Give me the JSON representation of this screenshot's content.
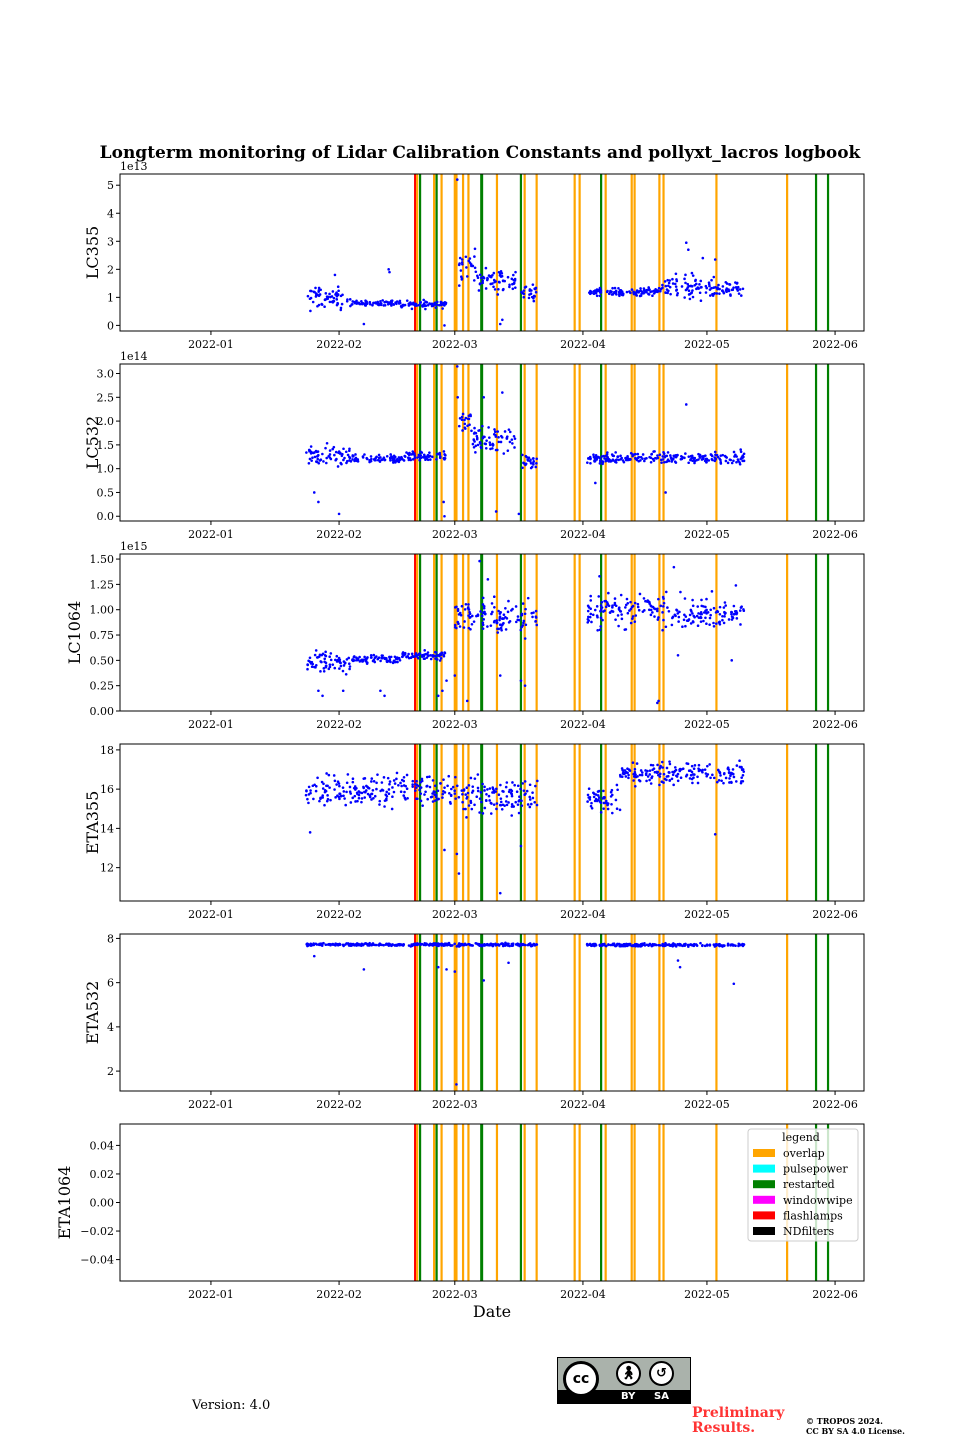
{
  "figure": {
    "title": "Longterm monitoring of Lidar Calibration Constants and pollyxt_lacros logbook",
    "xlabel": "Date",
    "version": "Version: 4.0",
    "preliminary": [
      "Preliminary",
      "Results."
    ],
    "copyright": [
      "© TROPOS 2024.",
      "CC BY SA 4.0 License."
    ],
    "cc_badge": {
      "cc": "cc",
      "by": "BY",
      "sa": "SA"
    }
  },
  "chart_data": {
    "type": "scatter",
    "x_range": [
      "2021-12-10",
      "2022-06-08"
    ],
    "x_ticks": [
      "2022-01",
      "2022-02",
      "2022-03",
      "2022-04",
      "2022-05",
      "2022-06"
    ],
    "x_tick_dates": [
      "2022-01-01",
      "2022-02-01",
      "2022-03-01",
      "2022-04-01",
      "2022-05-01",
      "2022-06-01"
    ],
    "marker_color": "#0000ff",
    "legend": {
      "title": "legend",
      "placement": "top-right of last panel",
      "entries": [
        {
          "label": "overlap",
          "color": "#ffa500"
        },
        {
          "label": "pulsepower",
          "color": "#00ffff"
        },
        {
          "label": "restarted",
          "color": "#008000"
        },
        {
          "label": "windowwipe",
          "color": "#ff00ff"
        },
        {
          "label": "flashlamps",
          "color": "#ff0000"
        },
        {
          "label": "NDfilters",
          "color": "#000000"
        }
      ]
    },
    "events": [
      {
        "date": "2022-02-19.4",
        "type": "flashlamps"
      },
      {
        "date": "2022-02-19.9",
        "type": "overlap"
      },
      {
        "date": "2022-02-20.6",
        "type": "restarted"
      },
      {
        "date": "2022-02-24.0",
        "type": "overlap"
      },
      {
        "date": "2022-02-24.6",
        "type": "restarted"
      },
      {
        "date": "2022-02-25.8",
        "type": "overlap"
      },
      {
        "date": "2022-03-01.0",
        "type": "overlap"
      },
      {
        "date": "2022-03-01.4",
        "type": "overlap"
      },
      {
        "date": "2022-03-03.0",
        "type": "overlap"
      },
      {
        "date": "2022-03-04.3",
        "type": "overlap"
      },
      {
        "date": "2022-03-07.5",
        "type": "restarted"
      },
      {
        "date": "2022-03-11.2",
        "type": "overlap"
      },
      {
        "date": "2022-03-17.0",
        "type": "restarted"
      },
      {
        "date": "2022-03-17.9",
        "type": "overlap"
      },
      {
        "date": "2022-03-20.8",
        "type": "overlap"
      },
      {
        "date": "2022-03-30.0",
        "type": "overlap"
      },
      {
        "date": "2022-03-31.2",
        "type": "overlap"
      },
      {
        "date": "2022-04-05.4",
        "type": "restarted"
      },
      {
        "date": "2022-04-06.5",
        "type": "overlap"
      },
      {
        "date": "2022-04-12.8",
        "type": "overlap"
      },
      {
        "date": "2022-04-13.5",
        "type": "overlap"
      },
      {
        "date": "2022-04-19.5",
        "type": "overlap"
      },
      {
        "date": "2022-04-20.5",
        "type": "overlap"
      },
      {
        "date": "2022-05-03.3",
        "type": "overlap"
      },
      {
        "date": "2022-05-20.4",
        "type": "overlap"
      },
      {
        "date": "2022-05-27.4",
        "type": "restarted"
      },
      {
        "date": "2022-05-30.3",
        "type": "restarted"
      }
    ],
    "panels": [
      {
        "ylabel": "LC355",
        "offset": "1e13",
        "ylim": [
          -0.2,
          5.4
        ],
        "yticks": [
          0,
          1,
          2,
          3,
          4,
          5
        ],
        "yticklabels": [
          "0",
          "1",
          "2",
          "3",
          "4",
          "5"
        ],
        "segments": [
          {
            "start": 24.0,
            "end": 35.0,
            "mean": 0.95,
            "spread": 0.35
          },
          {
            "start": 35.0,
            "end": 47.0,
            "mean": 0.8,
            "spread": 0.08
          },
          {
            "start": 47.0,
            "end": 58.0,
            "mean": 0.75,
            "spread": 0.12
          },
          {
            "start": 61.0,
            "end": 65.0,
            "mean": 2.1,
            "spread": 0.6
          },
          {
            "start": 65.0,
            "end": 75.0,
            "mean": 1.6,
            "spread": 0.35
          },
          {
            "start": 76.0,
            "end": 80.0,
            "mean": 1.2,
            "spread": 0.25
          },
          {
            "start": 92.0,
            "end": 110.0,
            "mean": 1.2,
            "spread": 0.12
          },
          {
            "start": 110.0,
            "end": 123.0,
            "mean": 1.35,
            "spread": 0.4
          },
          {
            "start": 123.0,
            "end": 130.0,
            "mean": 1.3,
            "spread": 0.2
          }
        ],
        "outliers": [
          [
            60.6,
            5.2
          ],
          [
            57.5,
            0.0
          ],
          [
            71.0,
            0.05
          ],
          [
            71.5,
            0.2
          ],
          [
            44.0,
            2.0
          ],
          [
            44.2,
            1.9
          ],
          [
            120.0,
            2.4
          ],
          [
            116.0,
            2.95
          ],
          [
            116.5,
            2.7
          ],
          [
            123.0,
            2.35
          ],
          [
            38.0,
            0.05
          ],
          [
            31.0,
            1.8
          ]
        ]
      },
      {
        "ylabel": "LC532",
        "offset": "1e14",
        "ylim": [
          -0.1,
          3.2
        ],
        "yticks": [
          0,
          0.5,
          1,
          1.5,
          2,
          2.5,
          3
        ],
        "yticklabels": [
          "0.0",
          "0.5",
          "1.0",
          "1.5",
          "2.0",
          "2.5",
          "3.0"
        ],
        "segments": [
          {
            "start": 24.0,
            "end": 35.0,
            "mean": 1.25,
            "spread": 0.2
          },
          {
            "start": 35.0,
            "end": 47.0,
            "mean": 1.2,
            "spread": 0.08
          },
          {
            "start": 47.0,
            "end": 58.0,
            "mean": 1.25,
            "spread": 0.1
          },
          {
            "start": 61.0,
            "end": 64.0,
            "mean": 2.0,
            "spread": 0.2
          },
          {
            "start": 64.0,
            "end": 75.0,
            "mean": 1.6,
            "spread": 0.25
          },
          {
            "start": 76.0,
            "end": 80.0,
            "mean": 1.15,
            "spread": 0.15
          },
          {
            "start": 92.0,
            "end": 123.0,
            "mean": 1.22,
            "spread": 0.1
          },
          {
            "start": 123.0,
            "end": 130.0,
            "mean": 1.25,
            "spread": 0.15
          }
        ],
        "outliers": [
          [
            60.6,
            3.15
          ],
          [
            26.0,
            0.5
          ],
          [
            27.0,
            0.3
          ],
          [
            32.0,
            0.05
          ],
          [
            57.5,
            0.0
          ],
          [
            57.3,
            0.3
          ],
          [
            70.0,
            0.1
          ],
          [
            75.5,
            0.05
          ],
          [
            94.0,
            0.7
          ],
          [
            111.0,
            0.5
          ],
          [
            116.0,
            2.35
          ],
          [
            60.7,
            2.5
          ],
          [
            67.0,
            2.5
          ],
          [
            71.5,
            2.6
          ]
        ]
      },
      {
        "ylabel": "LC1064",
        "offset": "1e15",
        "ylim": [
          0,
          1.55
        ],
        "yticks": [
          0,
          0.25,
          0.5,
          0.75,
          1,
          1.25,
          1.5
        ],
        "yticklabels": [
          "0.00",
          "0.25",
          "0.50",
          "0.75",
          "1.00",
          "1.25",
          "1.50"
        ],
        "segments": [
          {
            "start": 24.0,
            "end": 35.0,
            "mean": 0.48,
            "spread": 0.1
          },
          {
            "start": 35.0,
            "end": 47.0,
            "mean": 0.51,
            "spread": 0.04
          },
          {
            "start": 47.0,
            "end": 58.0,
            "mean": 0.55,
            "spread": 0.04
          },
          {
            "start": 60.0,
            "end": 80.0,
            "mean": 0.93,
            "spread": 0.15
          },
          {
            "start": 92.0,
            "end": 123.0,
            "mean": 0.98,
            "spread": 0.15
          },
          {
            "start": 123.0,
            "end": 130.0,
            "mean": 0.95,
            "spread": 0.1
          }
        ],
        "outliers": [
          [
            27.0,
            0.2
          ],
          [
            28.0,
            0.15
          ],
          [
            33.0,
            0.2
          ],
          [
            42.0,
            0.2
          ],
          [
            43.0,
            0.15
          ],
          [
            56.0,
            0.15
          ],
          [
            57.0,
            0.2
          ],
          [
            58.0,
            0.3
          ],
          [
            60.0,
            0.35
          ],
          [
            63.0,
            0.1
          ],
          [
            71.0,
            0.35
          ],
          [
            76.0,
            0.3
          ],
          [
            77.0,
            0.25
          ],
          [
            109.0,
            0.08
          ],
          [
            109.3,
            0.1
          ],
          [
            66.0,
            1.48
          ],
          [
            68.0,
            1.3
          ],
          [
            95.0,
            1.33
          ],
          [
            113.0,
            1.42
          ],
          [
            114.0,
            0.55
          ],
          [
            127.0,
            0.5
          ],
          [
            128.0,
            1.24
          ]
        ]
      },
      {
        "ylabel": "ETA355",
        "offset": "",
        "ylim": [
          10.3,
          18.3
        ],
        "yticks": [
          12,
          14,
          16,
          18
        ],
        "yticklabels": [
          "12",
          "14",
          "16",
          "18"
        ],
        "segments": [
          {
            "start": 24.0,
            "end": 58.0,
            "mean": 16.0,
            "spread": 0.7
          },
          {
            "start": 58.0,
            "end": 80.0,
            "mean": 15.6,
            "spread": 0.8
          },
          {
            "start": 92.0,
            "end": 100.0,
            "mean": 15.4,
            "spread": 0.6
          },
          {
            "start": 100.0,
            "end": 130.0,
            "mean": 16.8,
            "spread": 0.5
          }
        ],
        "outliers": [
          [
            57.5,
            12.9
          ],
          [
            60.5,
            12.7
          ],
          [
            61.0,
            11.7
          ],
          [
            71.0,
            10.7
          ],
          [
            76.0,
            13.1
          ],
          [
            123.0,
            13.7
          ],
          [
            25.0,
            13.8
          ]
        ]
      },
      {
        "ylabel": "ETA532",
        "offset": "",
        "ylim": [
          1.1,
          8.2
        ],
        "yticks": [
          2,
          4,
          6,
          8
        ],
        "yticklabels": [
          "2",
          "4",
          "6",
          "8"
        ],
        "segments": [
          {
            "start": 24.0,
            "end": 80.0,
            "mean": 7.72,
            "spread": 0.06
          },
          {
            "start": 92.0,
            "end": 130.0,
            "mean": 7.7,
            "spread": 0.06
          }
        ],
        "outliers": [
          [
            26.0,
            7.2
          ],
          [
            38.0,
            6.6
          ],
          [
            56.0,
            6.7
          ],
          [
            58.0,
            6.6
          ],
          [
            60.0,
            6.5
          ],
          [
            60.4,
            1.4
          ],
          [
            67.0,
            6.1
          ],
          [
            73.0,
            6.9
          ],
          [
            114.0,
            7.0
          ],
          [
            114.5,
            6.7
          ],
          [
            127.5,
            5.95
          ]
        ]
      },
      {
        "ylabel": "ETA1064",
        "offset": "",
        "ylim": [
          -0.055,
          0.055
        ],
        "yticks": [
          -0.04,
          -0.02,
          0,
          0.02,
          0.04
        ],
        "yticklabels": [
          "−0.04",
          "−0.02",
          "0.00",
          "0.02",
          "0.04"
        ],
        "segments": [],
        "outliers": []
      }
    ]
  }
}
